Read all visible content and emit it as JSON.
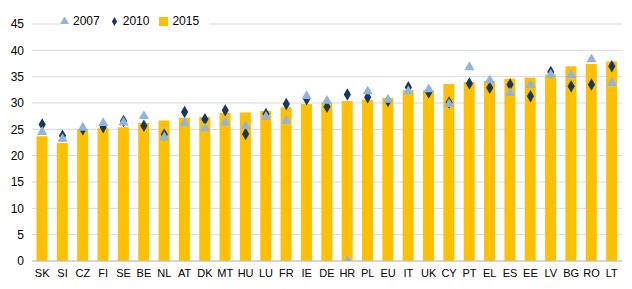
{
  "chart_data": {
    "type": "bar",
    "categories": [
      "SK",
      "SI",
      "CZ",
      "FI",
      "SE",
      "BE",
      "NL",
      "AT",
      "DK",
      "MT",
      "HU",
      "LU",
      "FR",
      "IE",
      "DE",
      "HR",
      "PL",
      "EU",
      "IT",
      "UK",
      "CY",
      "PT",
      "EL",
      "ES",
      "EE",
      "LV",
      "BG",
      "RO",
      "LT"
    ],
    "series": [
      {
        "name": "2015",
        "type": "bar",
        "color": "#FFC000",
        "values": [
          23.7,
          22.4,
          25.0,
          25.2,
          25.4,
          26.2,
          26.7,
          27.2,
          27.4,
          28.1,
          28.2,
          28.5,
          29.2,
          29.8,
          30.1,
          30.4,
          30.6,
          31.0,
          32.4,
          32.4,
          33.6,
          34.0,
          34.2,
          34.6,
          34.8,
          35.4,
          37.0,
          37.4,
          37.9
        ]
      },
      {
        "name": "2010",
        "type": "scatter",
        "marker": "diamond",
        "color": "#17375E",
        "values": [
          25.9,
          23.8,
          25.0,
          25.4,
          26.6,
          25.7,
          24.0,
          28.3,
          26.9,
          28.6,
          24.1,
          27.9,
          29.8,
          30.7,
          29.3,
          31.6,
          31.1,
          30.4,
          33.0,
          32.0,
          30.1,
          33.7,
          32.9,
          33.5,
          31.3,
          35.9,
          33.2,
          33.5,
          37.0
        ]
      },
      {
        "name": "2007",
        "type": "scatter",
        "marker": "triangle",
        "color": "#8DB4E2",
        "values": [
          24.5,
          23.2,
          25.3,
          26.2,
          26.3,
          27.5,
          23.5,
          26.2,
          25.2,
          26.3,
          25.6,
          27.4,
          26.6,
          31.3,
          30.4,
          0,
          32.2,
          30.6,
          32.2,
          32.6,
          29.8,
          36.8,
          34.3,
          31.9,
          33.4,
          35.4,
          35.3,
          38.3,
          33.8
        ]
      }
    ],
    "ylim": [
      0,
      45
    ],
    "yticks": [
      0,
      5,
      10,
      15,
      20,
      25,
      30,
      35,
      40,
      45
    ],
    "grid": true,
    "legend": "top-left"
  }
}
